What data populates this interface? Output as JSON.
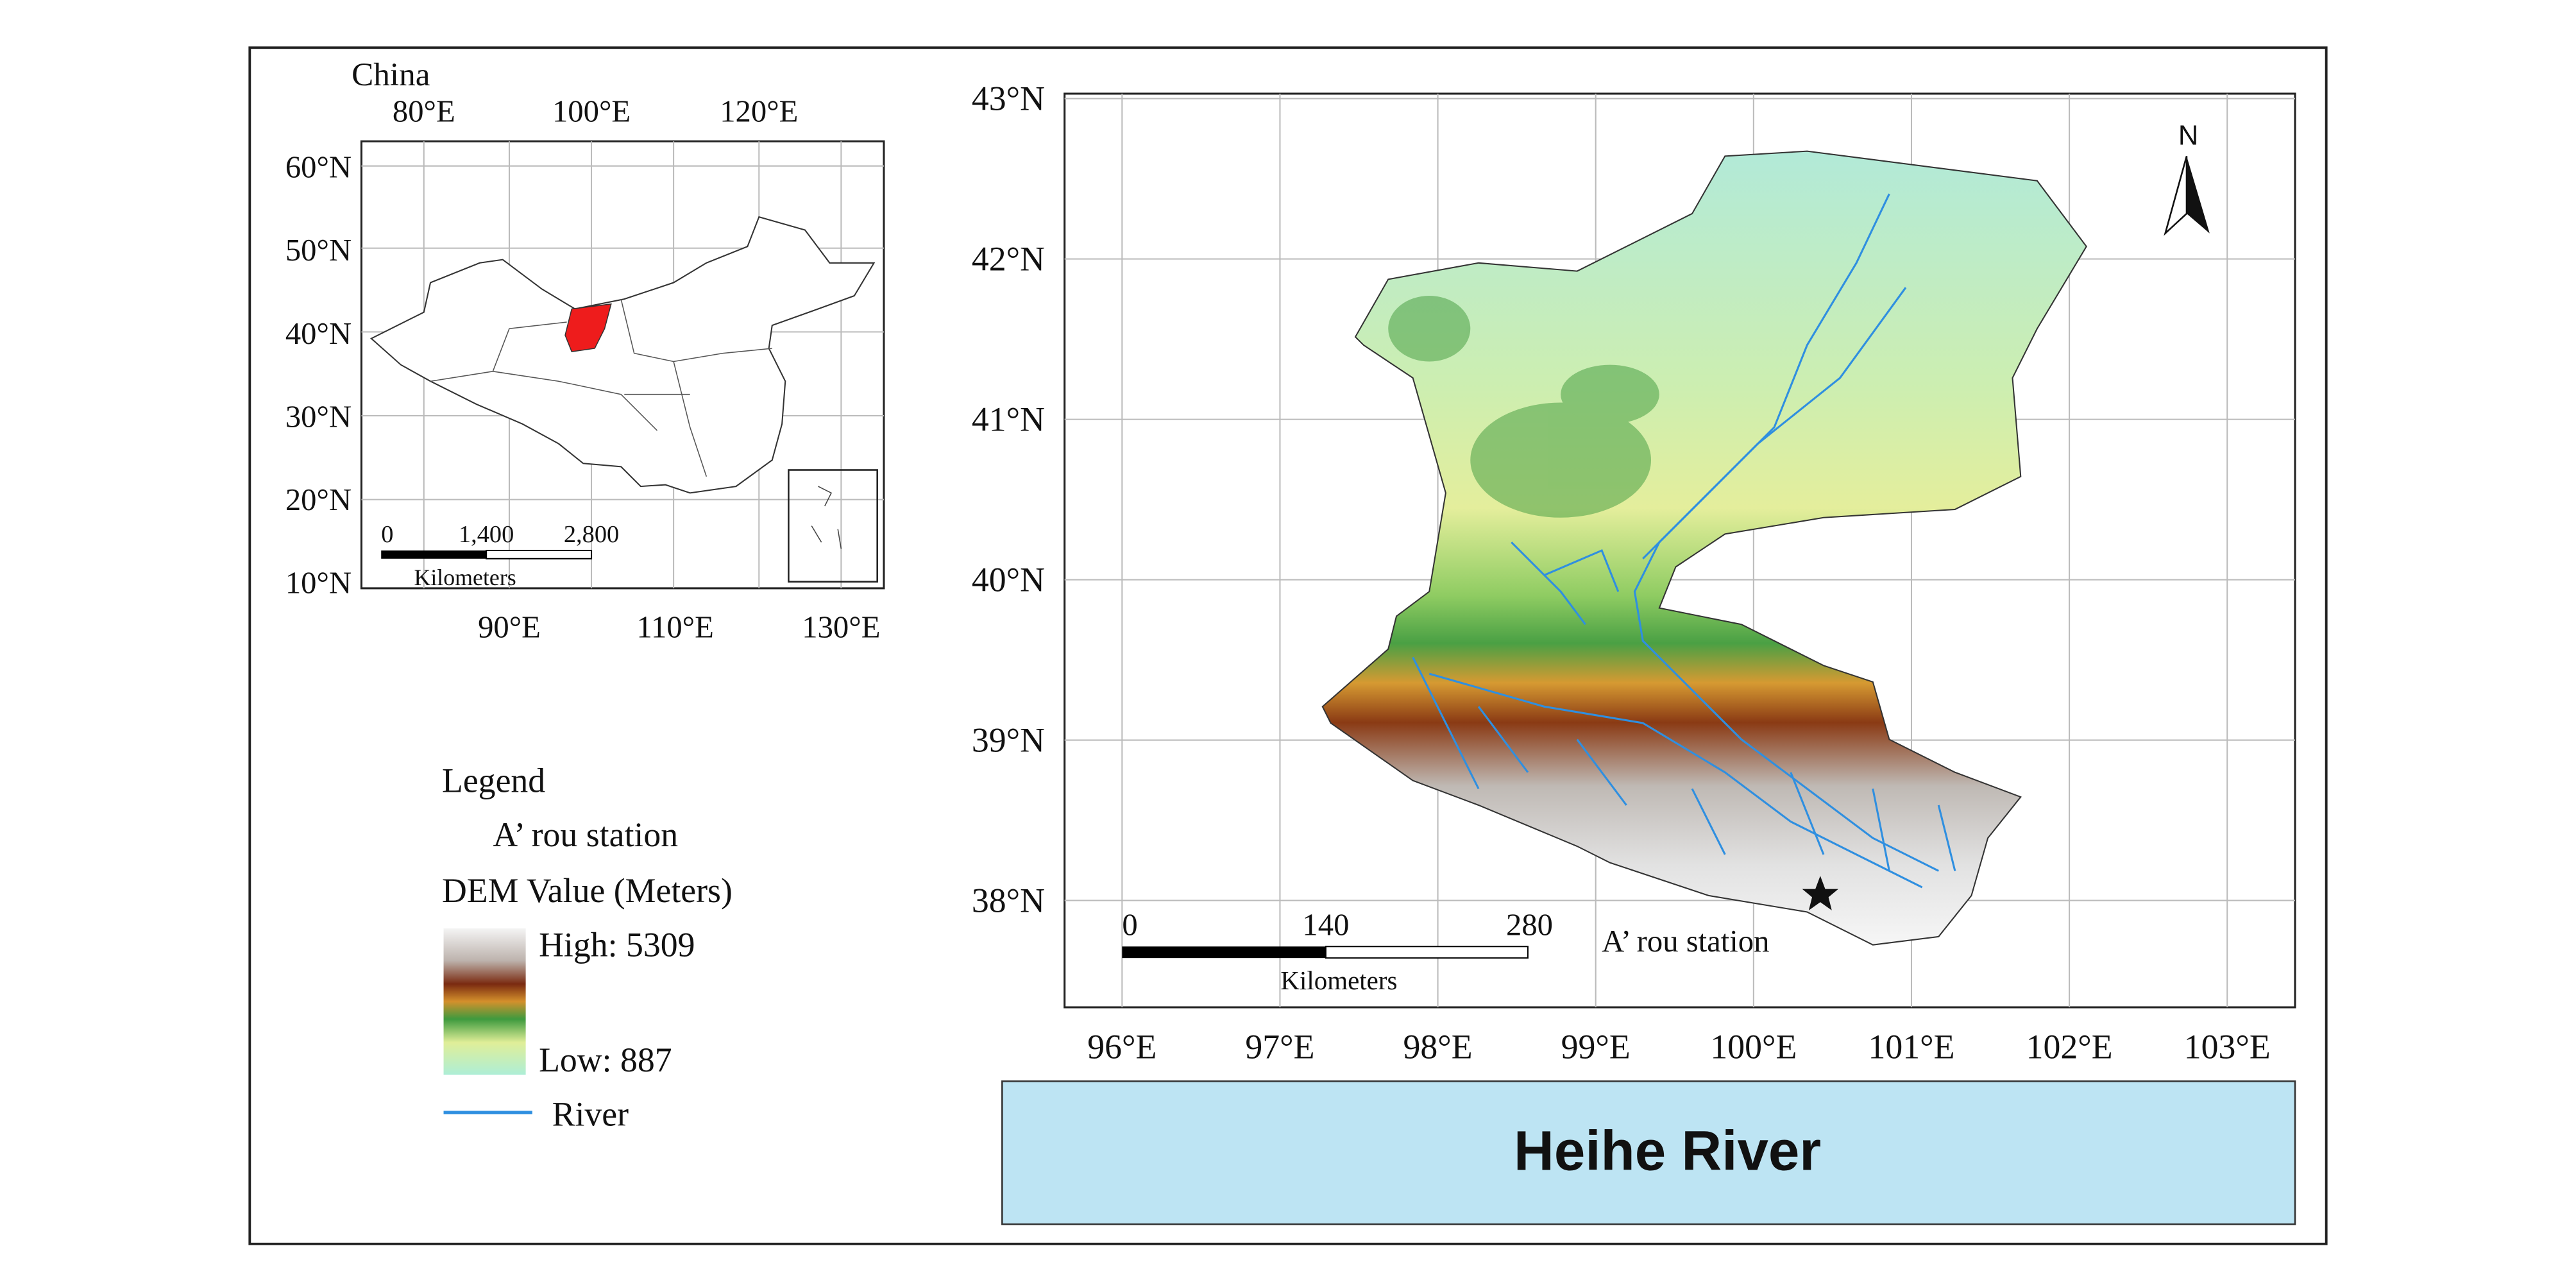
{
  "inset": {
    "title": "China",
    "top_ticks": [
      "80°E",
      "100°E",
      "120°E"
    ],
    "left_ticks": [
      "60°N",
      "50°N",
      "40°N",
      "30°N",
      "20°N",
      "10°N"
    ],
    "bottom_ticks": [
      "90°E",
      "110°E",
      "130°E"
    ],
    "scale": {
      "labels": [
        "0",
        "1,400",
        "2,800"
      ],
      "unit": "Kilometers"
    }
  },
  "legend": {
    "title": "Legend",
    "station": "A’ rou station",
    "dem_title": "DEM Value (Meters)",
    "high": "High: 5309",
    "low": "Low: 887",
    "river": "River"
  },
  "map": {
    "lat_ticks": [
      "43°N",
      "42°N",
      "41°N",
      "40°N",
      "39°N",
      "38°N"
    ],
    "lon_ticks": [
      "96°E",
      "97°E",
      "98°E",
      "99°E",
      "100°E",
      "101°E",
      "102°E",
      "103°E"
    ],
    "scale": {
      "labels": [
        "0",
        "140",
        "280"
      ],
      "unit": "Kilometers"
    },
    "station_label": "A’ rou station",
    "north": "N"
  },
  "title": "Heihe River"
}
